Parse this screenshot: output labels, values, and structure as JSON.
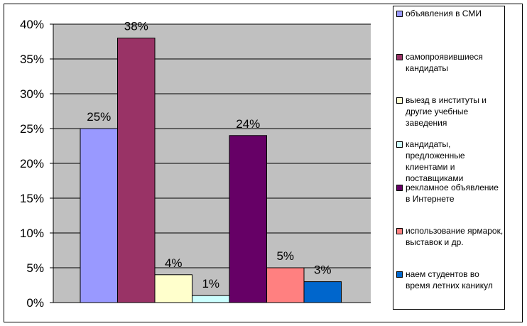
{
  "chart_data": {
    "type": "bar",
    "title": "",
    "xlabel": "",
    "ylabel": "",
    "ylim": [
      0,
      40
    ],
    "yticks": [
      "0%",
      "5%",
      "10%",
      "15%",
      "20%",
      "25%",
      "30%",
      "35%",
      "40%"
    ],
    "grid": true,
    "legend_position": "right",
    "plot_background": "#c0c0c0",
    "series": [
      {
        "name": "объявления в СМИ",
        "value": 25,
        "label": "25%",
        "color": "#9999ff"
      },
      {
        "name": "самопроявившиеся кандидаты",
        "value": 38,
        "label": "38%",
        "color": "#993366"
      },
      {
        "name": "выезд в институты и другие учебные заведения",
        "value": 4,
        "label": "4%",
        "color": "#ffffcc"
      },
      {
        "name": "кандидаты, предложенные клиентами и поставщиками",
        "value": 1,
        "label": "1%",
        "color": "#ccffff"
      },
      {
        "name": "рекламное объявление в Интернете",
        "value": 24,
        "label": "24%",
        "color": "#660066"
      },
      {
        "name": "использование ярмарок, выставок и др.",
        "value": 5,
        "label": "5%",
        "color": "#ff8080"
      },
      {
        "name": "наем студентов во время летних каникул",
        "value": 3,
        "label": "3%",
        "color": "#0066cc"
      }
    ]
  }
}
